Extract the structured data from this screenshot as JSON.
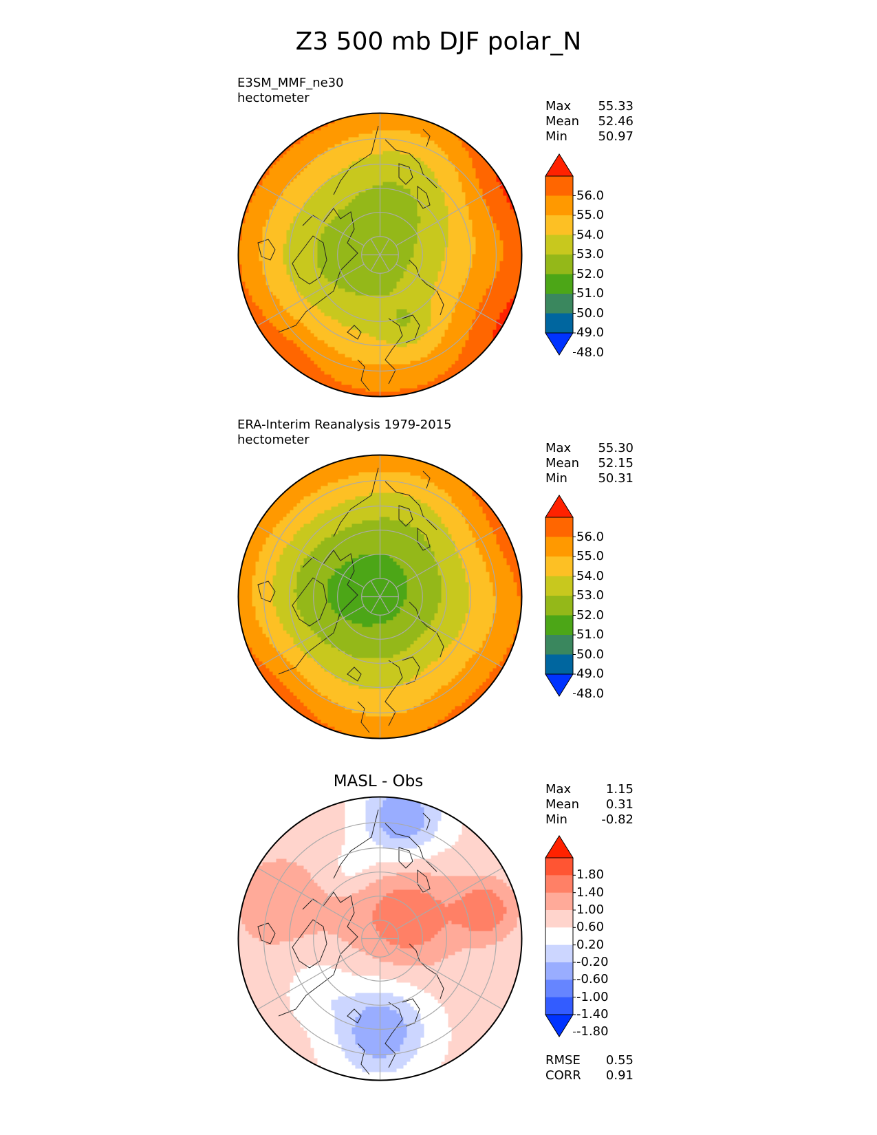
{
  "title": "Z3 500 mb DJF polar_N",
  "chart_data": [
    {
      "type": "heatmap",
      "projection": "north polar stereographic",
      "title": "",
      "label": "E3SM_MMF_ne30",
      "units": "hectometer",
      "stats": [
        [
          "Max",
          "55.33"
        ],
        [
          "Mean",
          "52.46"
        ],
        [
          "Min",
          "50.97"
        ]
      ],
      "colorbar": {
        "ticks": [
          "56.0",
          "55.0",
          "54.0",
          "53.0",
          "52.0",
          "51.0",
          "50.0",
          "49.0",
          "48.0"
        ],
        "colors": [
          "#ff2200",
          "#ff6600",
          "#ff9900",
          "#fdc024",
          "#c8c81e",
          "#94b819",
          "#4ca617",
          "#3a875e",
          "#00669f",
          "#0033ff"
        ],
        "extend": "both"
      },
      "field": {
        "pole_value": 51.4,
        "ring_values": [
          51.6,
          52.2,
          53.0,
          53.9,
          54.8
        ],
        "ridge_sector": "north-east and south-east edges",
        "trough_sector": "west and north"
      }
    },
    {
      "type": "heatmap",
      "projection": "north polar stereographic",
      "title": "",
      "label": "ERA-Interim Reanalysis 1979-2015",
      "units": "hectometer",
      "stats": [
        [
          "Max",
          "55.30"
        ],
        [
          "Mean",
          "52.15"
        ],
        [
          "Min",
          "50.31"
        ]
      ],
      "colorbar": {
        "ticks": [
          "56.0",
          "55.0",
          "54.0",
          "53.0",
          "52.0",
          "51.0",
          "50.0",
          "49.0",
          "48.0"
        ],
        "colors": [
          "#ff2200",
          "#ff6600",
          "#ff9900",
          "#fdc024",
          "#c8c81e",
          "#94b819",
          "#4ca617",
          "#3a875e",
          "#00669f",
          "#0033ff"
        ],
        "extend": "both"
      },
      "field": {
        "pole_value": 50.8,
        "ring_values": [
          51.3,
          51.9,
          52.8,
          53.7,
          54.7
        ],
        "ridge_sector": "south-east edge",
        "trough_sector": "west"
      }
    },
    {
      "type": "heatmap",
      "projection": "north polar stereographic",
      "title": "MASL - Obs",
      "label": "",
      "units": "",
      "stats": [
        [
          "Max",
          "1.15"
        ],
        [
          "Mean",
          "0.31"
        ],
        [
          "Min",
          "-0.82"
        ]
      ],
      "extra_stats": [
        [
          "RMSE",
          "0.55"
        ],
        [
          "CORR",
          "0.91"
        ]
      ],
      "colorbar": {
        "ticks": [
          "1.80",
          "1.40",
          "1.00",
          "0.60",
          "0.20",
          "-0.20",
          "-0.60",
          "-1.00",
          "-1.40",
          "-1.80"
        ],
        "colors": [
          "#ff2200",
          "#ff5533",
          "#ff8066",
          "#ffaa99",
          "#ffd4cc",
          "#ffffff",
          "#ccd6ff",
          "#99adff",
          "#6685ff",
          "#335cff",
          "#0033ff"
        ],
        "extend": "both"
      },
      "field": {
        "positive_max_region": "centre-right",
        "negative_min_regions": [
          "top",
          "bottom"
        ]
      }
    }
  ],
  "icons": [
    "north-polar-map"
  ]
}
